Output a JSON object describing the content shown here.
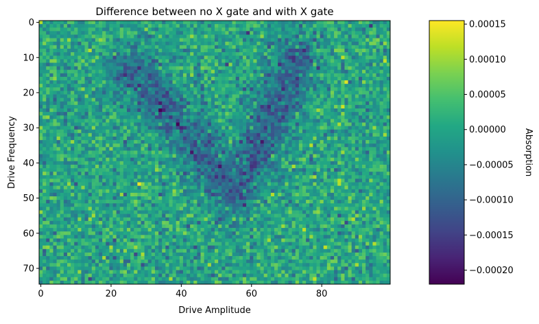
{
  "chart_data": {
    "type": "heatmap",
    "title": "Difference between no X gate and with X gate",
    "xlabel": "Drive Amplitude",
    "ylabel": "Drive Frequency",
    "x_ticks": [
      0,
      20,
      40,
      60,
      80
    ],
    "y_ticks": [
      0,
      10,
      20,
      30,
      40,
      50,
      60,
      70
    ],
    "x_range": [
      0,
      99
    ],
    "y_range": [
      0,
      74
    ],
    "y_axis_inverted": true,
    "grid_size": {
      "columns": 100,
      "rows": 75
    },
    "colormap": "viridis",
    "colorbar": {
      "label": "Absorption",
      "min": -0.00022,
      "max": 0.000155,
      "ticks": [
        0.00015,
        0.0001,
        5e-05,
        0.0,
        -5e-05,
        -0.0001,
        -0.00015,
        -0.0002
      ],
      "tick_labels": [
        "0.00015",
        "0.00010",
        "0.00005",
        "0.00000",
        "−0.00005",
        "−0.00010",
        "−0.00015",
        "−0.00020"
      ]
    },
    "background_level": 0.0,
    "noise_std": 4e-05,
    "feature": {
      "description": "V-shaped absorption dip",
      "vertex": {
        "x": 55,
        "y": 49
      },
      "left_arm_top": {
        "x": 27,
        "y": 14
      },
      "right_arm_top": {
        "x": 73,
        "y": 11
      },
      "min_value": -0.0001
    },
    "colors": {
      "viridis_low": "#440154",
      "viridis_mid": "#21918c",
      "viridis_high": "#fde725"
    }
  }
}
